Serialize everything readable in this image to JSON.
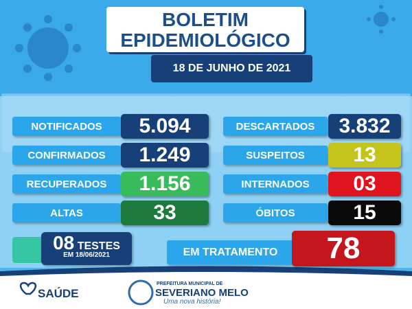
{
  "header": {
    "title_line1": "BOLETIM",
    "title_line2": "EPIDEMIOLÓGICO",
    "date": "18 DE JUNHO DE 2021"
  },
  "stats_left": [
    {
      "label": "NOTIFICADOS",
      "value": "5.094",
      "color": "#173f78"
    },
    {
      "label": "CONFIRMADOS",
      "value": "1.249",
      "color": "#173f78"
    },
    {
      "label": "RECUPERADOS",
      "value": "1.156",
      "color": "#38bb5a"
    },
    {
      "label": "ALTAS",
      "value": "33",
      "color": "#1d7a3d"
    }
  ],
  "stats_right": [
    {
      "label": "DESCARTADOS",
      "value": "3.832",
      "color": "#173f78"
    },
    {
      "label": "SUSPEITOS",
      "value": "13",
      "color": "#c4c41c"
    },
    {
      "label": "INTERNADOS",
      "value": "03",
      "color": "#e0141e"
    },
    {
      "label": "ÓBITOS",
      "value": "15",
      "color": "#0a0a0a"
    }
  ],
  "tests": {
    "value": "08",
    "label": "TESTES",
    "date": "EM 18/06/2021"
  },
  "treatment": {
    "label": "EM TRATAMENTO",
    "value": "78"
  },
  "footer": {
    "health": "SAÚDE",
    "city_prefix": "PREFEITURA MUNICIPAL DE",
    "city": "SEVERIANO MELO",
    "slogan": "Uma nova história!"
  }
}
